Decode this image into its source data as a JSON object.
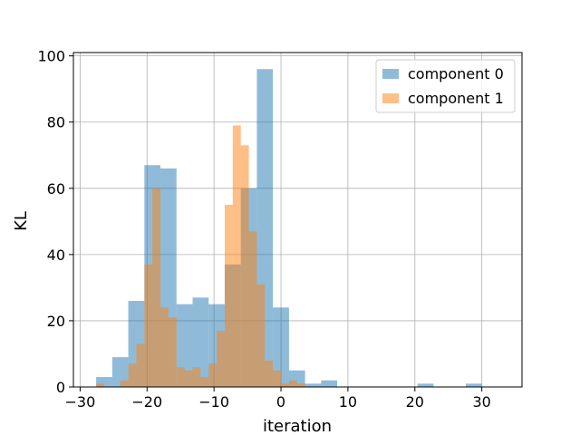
{
  "chart_data": {
    "type": "bar",
    "title": "",
    "xlabel": "iteration",
    "ylabel": "KL",
    "xlim": [
      -31,
      36
    ],
    "ylim": [
      0,
      101
    ],
    "xticks": [
      -30,
      -20,
      -10,
      0,
      10,
      20,
      30
    ],
    "yticks": [
      0,
      20,
      40,
      60,
      80,
      100
    ],
    "grid": true,
    "legend": "top-right",
    "series": [
      {
        "name": "component 0",
        "color": "#1f77b4",
        "opacity": 0.5,
        "bin_width": 2.4,
        "bin_start": -27.6,
        "values": [
          3,
          9,
          26,
          67,
          66,
          25,
          27,
          25,
          37,
          60,
          96,
          24,
          5,
          1,
          2,
          0,
          0,
          0,
          0,
          0,
          1,
          0,
          0,
          1
        ]
      },
      {
        "name": "component 1",
        "color": "#ff7f0e",
        "opacity": 0.5,
        "bin_width": 1.2,
        "bin_start": -27.6,
        "values": [
          1,
          0,
          0,
          2,
          7,
          13,
          37,
          60,
          24,
          21,
          6,
          5,
          6,
          3,
          7,
          17,
          55,
          79,
          73,
          47,
          31,
          8,
          5,
          1,
          2,
          1
        ]
      }
    ]
  }
}
